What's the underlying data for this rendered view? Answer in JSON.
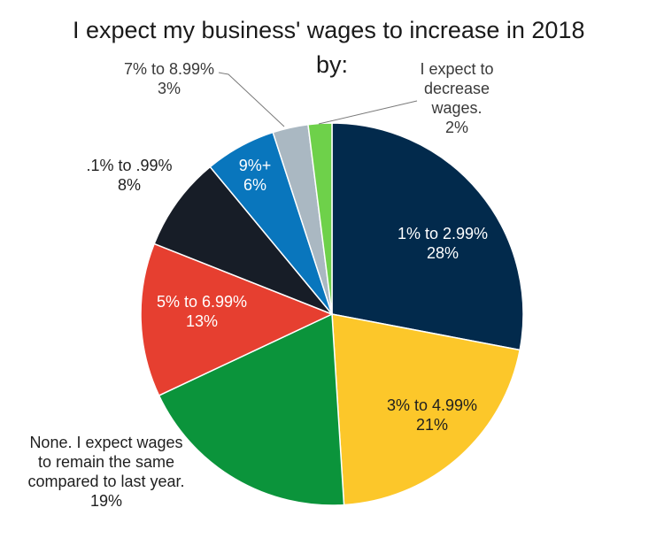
{
  "chart_data": {
    "type": "pie",
    "title_line1": "I expect my business' wages to increase in 2018",
    "title_line2": "by:",
    "slices": [
      {
        "label_lines": [
          "1% to 2.99%"
        ],
        "value": 28,
        "value_text": "28%",
        "color": "#022a4c"
      },
      {
        "label_lines": [
          "3% to 4.99%"
        ],
        "value": 21,
        "value_text": "21%",
        "color": "#fcc72a"
      },
      {
        "label_lines": [
          "None. I expect wages",
          "to remain the same",
          "compared to last year."
        ],
        "value": 19,
        "value_text": "19%",
        "color": "#0b943b"
      },
      {
        "label_lines": [
          "5% to 6.99%"
        ],
        "value": 13,
        "value_text": "13%",
        "color": "#e63f30"
      },
      {
        "label_lines": [
          ".1% to .99%"
        ],
        "value": 8,
        "value_text": "8%",
        "color": "#171d27"
      },
      {
        "label_lines": [
          "9%+"
        ],
        "value": 6,
        "value_text": "6%",
        "color": "#0976bd"
      },
      {
        "label_lines": [
          "7% to 8.99%"
        ],
        "value": 3,
        "value_text": "3%",
        "color": "#aab8c2"
      },
      {
        "label_lines": [
          "I expect to",
          "decrease",
          "wages."
        ],
        "value": 2,
        "value_text": "2%",
        "color": "#6ed14a"
      }
    ],
    "legend": "none"
  }
}
